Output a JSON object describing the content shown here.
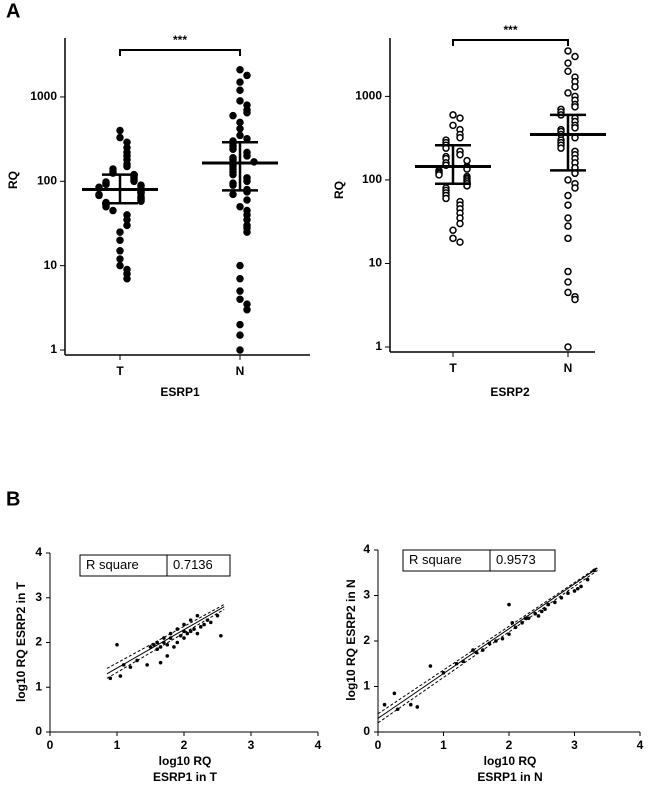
{
  "panel_labels": [
    "A",
    "B"
  ],
  "chart_data": [
    {
      "type": "dotplot",
      "ylabel": "RQ",
      "xlabel": "ESRP1",
      "categories": [
        "T",
        "N"
      ],
      "yscale": "log",
      "ylim": [
        1,
        5000
      ],
      "yticks": [
        1,
        10,
        100,
        1000
      ],
      "marker": "filled",
      "color": "#000000",
      "annotation": "***",
      "values": [
        [
          400,
          330,
          290,
          250,
          220,
          200,
          180,
          160,
          150,
          140,
          130,
          125,
          120,
          115,
          110,
          105,
          100,
          98,
          95,
          92,
          90,
          88,
          85,
          82,
          80,
          78,
          76,
          74,
          72,
          70,
          68,
          66,
          64,
          62,
          60,
          58,
          56,
          54,
          52,
          50,
          45,
          40,
          35,
          30,
          25,
          20,
          15,
          12,
          10,
          9,
          8,
          7
        ],
        [
          2100,
          1800,
          1500,
          1200,
          900,
          800,
          700,
          650,
          600,
          500,
          420,
          350,
          320,
          300,
          280,
          260,
          240,
          220,
          200,
          190,
          180,
          170,
          160,
          150,
          140,
          130,
          120,
          110,
          100,
          95,
          90,
          80,
          75,
          70,
          60,
          50,
          45,
          40,
          35,
          30,
          28,
          25,
          10,
          7,
          5,
          4,
          3.5,
          3,
          2,
          1.5,
          1
        ]
      ],
      "median": [
        80,
        165
      ],
      "iqr": [
        [
          55,
          120
        ],
        [
          78,
          290
        ]
      ]
    },
    {
      "type": "dotplot",
      "ylabel": "RQ",
      "xlabel": "ESRP2",
      "categories": [
        "T",
        "N"
      ],
      "yscale": "log",
      "ylim": [
        1,
        5000
      ],
      "yticks": [
        1,
        10,
        100,
        1000
      ],
      "marker": "open",
      "color": "#000000",
      "annotation": "***",
      "values": [
        [
          600,
          550,
          450,
          400,
          350,
          320,
          300,
          280,
          260,
          240,
          220,
          200,
          190,
          180,
          170,
          160,
          150,
          145,
          140,
          135,
          130,
          125,
          120,
          115,
          110,
          105,
          100,
          95,
          90,
          85,
          80,
          75,
          70,
          65,
          60,
          55,
          50,
          45,
          40,
          35,
          30,
          25,
          20,
          18
        ],
        [
          3500,
          3000,
          2500,
          2000,
          1700,
          1500,
          1300,
          1100,
          1000,
          900,
          800,
          750,
          700,
          650,
          600,
          550,
          500,
          450,
          420,
          400,
          380,
          350,
          320,
          300,
          280,
          260,
          240,
          220,
          200,
          180,
          160,
          140,
          120,
          100,
          90,
          80,
          65,
          50,
          35,
          28,
          20,
          8,
          6,
          4.5,
          4,
          3.7,
          1
        ]
      ],
      "median": [
        145,
        350
      ],
      "iqr": [
        [
          90,
          260
        ],
        [
          130,
          600
        ]
      ]
    },
    {
      "type": "scatter",
      "ylabel": "log10  RQ ESRP2 in T",
      "xlabel": [
        "log10  RQ",
        "ESRP1 in T"
      ],
      "xlim": [
        0,
        4
      ],
      "ylim": [
        0,
        4
      ],
      "xticks": [
        0,
        1,
        2,
        3,
        4
      ],
      "yticks": [
        0,
        1,
        2,
        3,
        4
      ],
      "color": "#000000",
      "r_square_label": "R square",
      "r_square": 0.7136,
      "x": [
        0.9,
        1.0,
        1.05,
        1.1,
        1.2,
        1.3,
        1.45,
        1.5,
        1.55,
        1.6,
        1.6,
        1.65,
        1.7,
        1.7,
        1.75,
        1.8,
        1.8,
        1.85,
        1.9,
        1.9,
        1.95,
        2.0,
        2.0,
        2.05,
        2.1,
        2.1,
        2.15,
        2.2,
        2.2,
        2.25,
        2.3,
        2.35,
        2.4,
        2.5,
        2.55,
        1.75,
        1.65,
        2.0
      ],
      "y": [
        1.2,
        1.95,
        1.25,
        1.5,
        1.45,
        1.6,
        1.5,
        1.9,
        1.95,
        1.85,
        2.0,
        1.9,
        2.0,
        2.1,
        1.95,
        2.1,
        2.2,
        1.9,
        2.0,
        2.3,
        2.15,
        2.1,
        2.4,
        2.2,
        2.25,
        2.5,
        2.3,
        2.2,
        2.6,
        2.35,
        2.4,
        2.5,
        2.45,
        2.6,
        2.15,
        1.7,
        1.55,
        2.25
      ],
      "fit": {
        "x": [
          0.85,
          2.6
        ],
        "y": [
          1.3,
          2.8
        ]
      },
      "ci_upper": {
        "x": [
          0.85,
          2.6
        ],
        "y": [
          1.42,
          2.85
        ]
      },
      "ci_lower": {
        "x": [
          0.85,
          2.6
        ],
        "y": [
          1.2,
          2.74
        ]
      }
    },
    {
      "type": "scatter",
      "ylabel": "log10 RQ ESRP2 in N",
      "xlabel": [
        "log10 RQ",
        "ESRP1 in N"
      ],
      "xlim": [
        0,
        4
      ],
      "ylim": [
        0,
        4
      ],
      "xticks": [
        0,
        1,
        2,
        3,
        4
      ],
      "yticks": [
        0,
        1,
        2,
        3,
        4
      ],
      "color": "#000000",
      "r_square_label": "R square",
      "r_square": 0.9573,
      "x": [
        0.1,
        0.25,
        0.3,
        0.5,
        0.6,
        0.8,
        1.0,
        1.2,
        1.3,
        1.45,
        1.5,
        1.6,
        1.7,
        1.8,
        1.9,
        2.0,
        2.05,
        2.1,
        2.2,
        2.25,
        2.3,
        2.4,
        2.45,
        2.5,
        2.55,
        2.6,
        2.7,
        2.8,
        2.9,
        3.0,
        3.05,
        3.1,
        3.2,
        3.3,
        2.0
      ],
      "y": [
        0.6,
        0.85,
        0.5,
        0.6,
        0.55,
        1.45,
        1.3,
        1.5,
        1.55,
        1.8,
        1.75,
        1.8,
        1.95,
        2.0,
        2.05,
        2.15,
        2.4,
        2.3,
        2.4,
        2.5,
        2.5,
        2.6,
        2.55,
        2.65,
        2.7,
        2.8,
        2.85,
        2.95,
        3.05,
        3.1,
        3.15,
        3.2,
        3.35,
        3.55,
        2.8
      ],
      "fit": {
        "x": [
          0,
          3.35
        ],
        "y": [
          0.3,
          3.6
        ]
      },
      "ci_upper": {
        "x": [
          0,
          3.35
        ],
        "y": [
          0.4,
          3.62
        ]
      },
      "ci_lower": {
        "x": [
          0,
          3.35
        ],
        "y": [
          0.2,
          3.55
        ]
      }
    }
  ]
}
